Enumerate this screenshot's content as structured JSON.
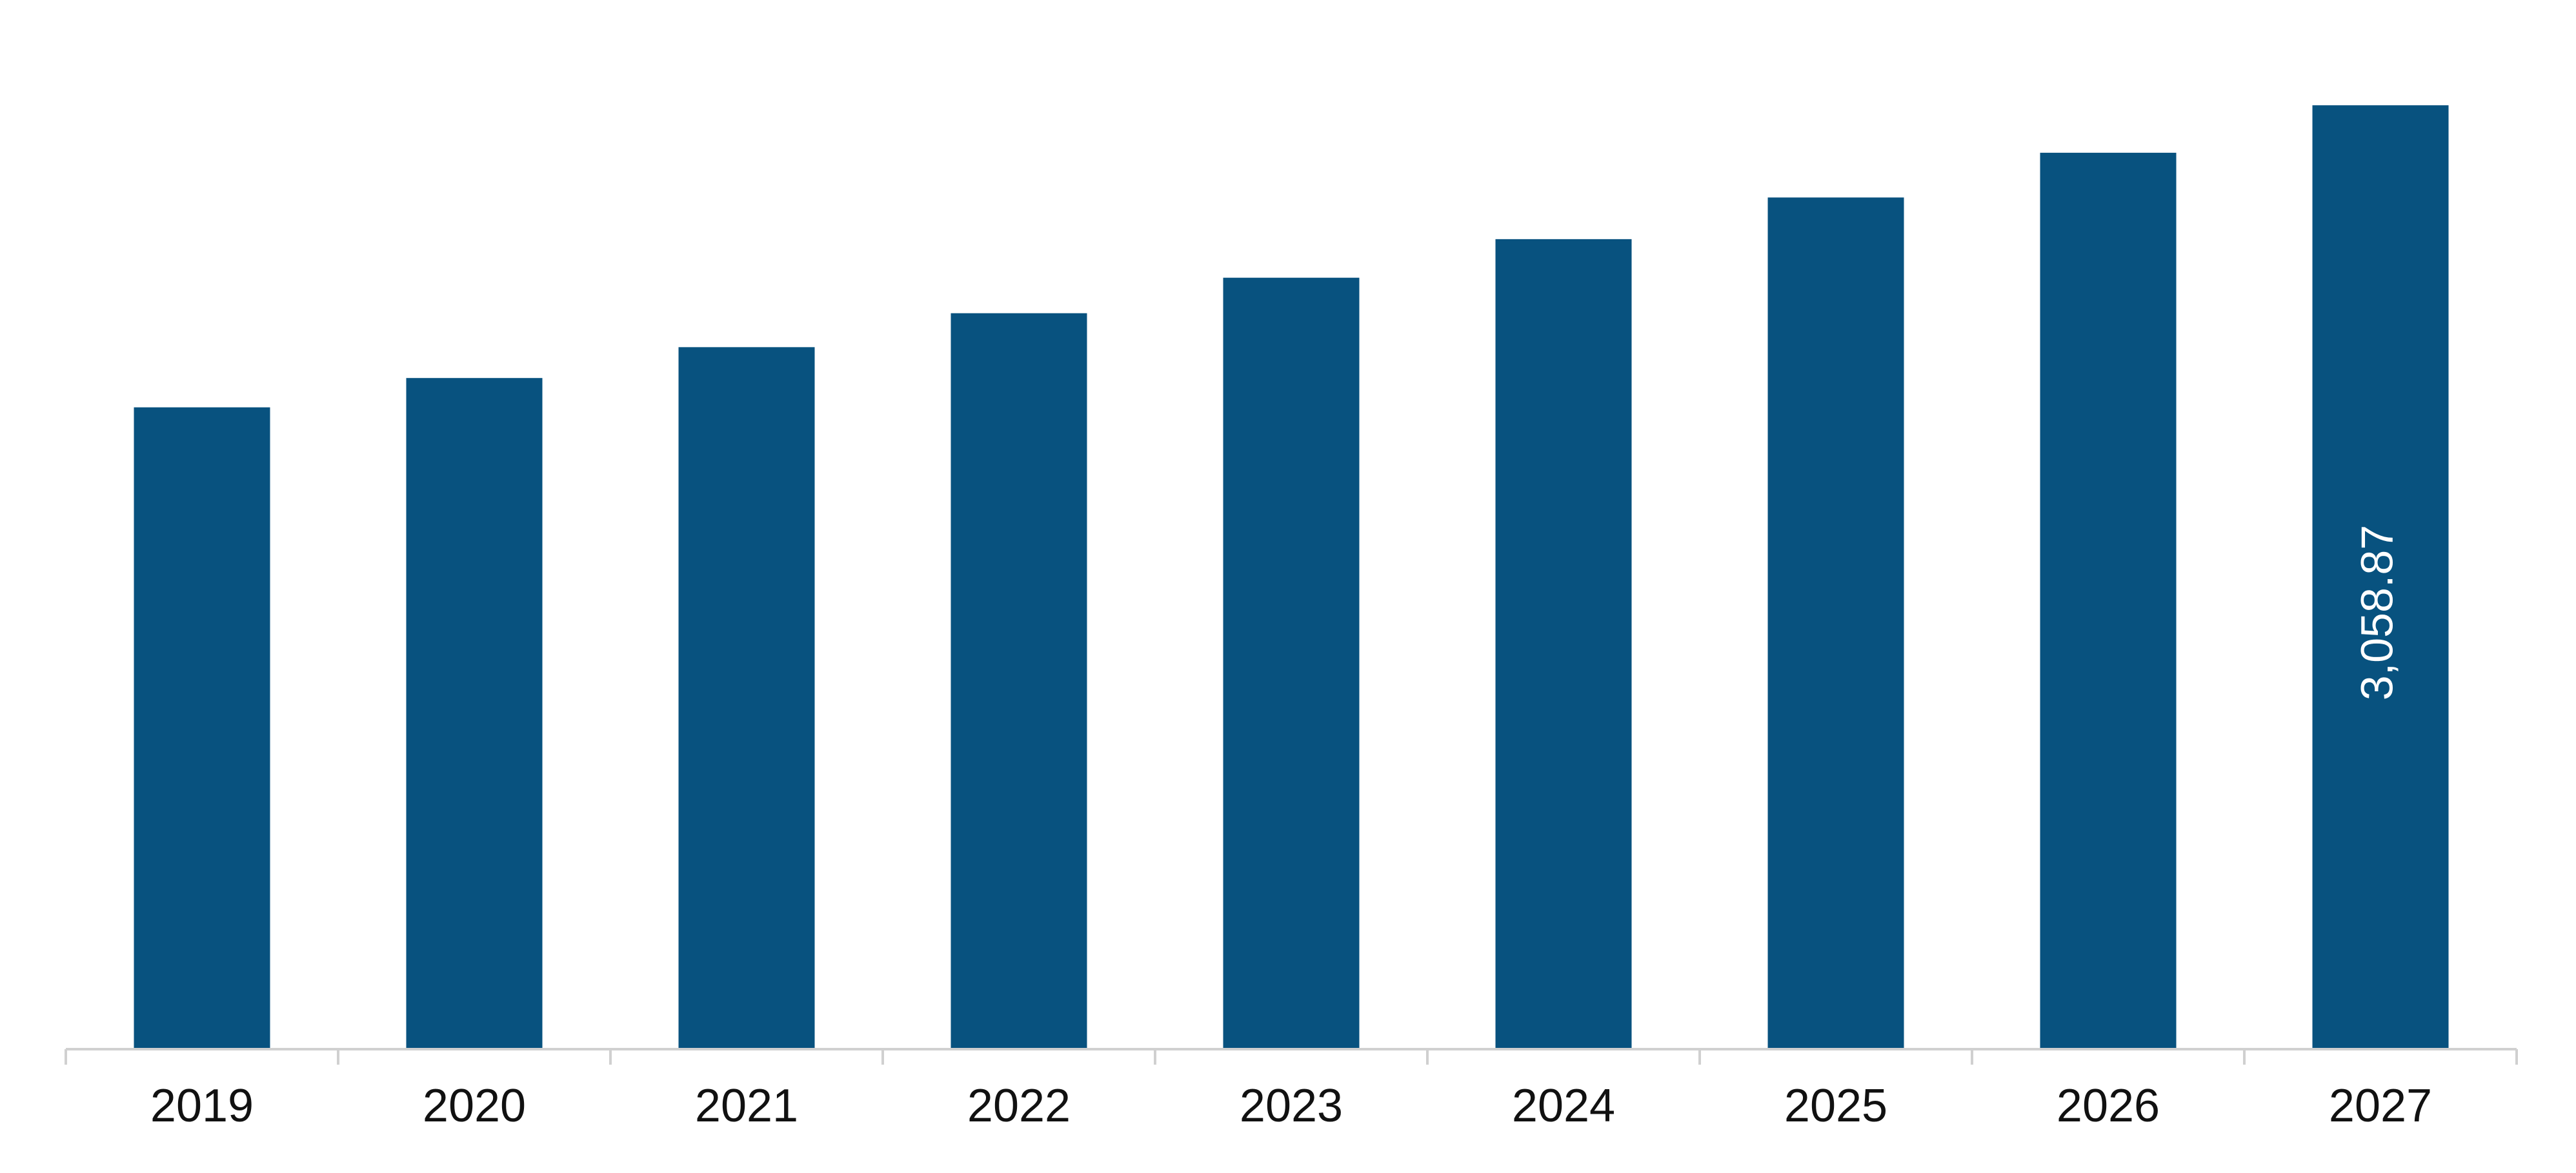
{
  "chart_data": {
    "type": "bar",
    "title": "",
    "xlabel": "",
    "ylabel": "",
    "categories": [
      "2019",
      "2020",
      "2021",
      "2022",
      "2023",
      "2024",
      "2025",
      "2026",
      "2027"
    ],
    "series": [
      {
        "values": [
          2080,
          2175,
          2275,
          2385,
          2500,
          2625,
          2760,
          2905,
          3058.87
        ],
        "color": "#08527f"
      }
    ],
    "data_labels": [
      {
        "category": "2027",
        "text": "3,058.87",
        "orientation": "vertical"
      }
    ],
    "ylim": [
      0,
      3400
    ],
    "y_axis_visible": false,
    "grid": false,
    "legend": "none",
    "axis_color": "#d0d0d0"
  }
}
